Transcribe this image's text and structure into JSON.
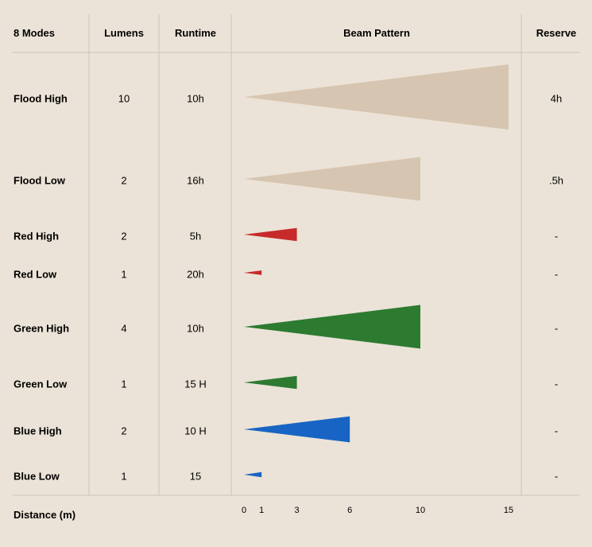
{
  "chart_data": {
    "type": "table",
    "columns": [
      "8 Modes",
      "Lumens",
      "Runtime",
      "Beam Pattern",
      "Reserve"
    ],
    "rows": [
      {
        "mode": "Flood High",
        "lumens": "10",
        "runtime": "10h",
        "reserve": "4h",
        "beam_distance": 15,
        "beam_spread": 1.0,
        "color": "#d6c5b0"
      },
      {
        "mode": "Flood Low",
        "lumens": "2",
        "runtime": "16h",
        "reserve": ".5h",
        "beam_distance": 10,
        "beam_spread": 0.67,
        "color": "#d6c5b0"
      },
      {
        "mode": "Red High",
        "lumens": "2",
        "runtime": "5h",
        "reserve": "-",
        "beam_distance": 3,
        "beam_spread": 0.2,
        "color": "#c62a2a"
      },
      {
        "mode": "Red Low",
        "lumens": "1",
        "runtime": "20h",
        "reserve": "-",
        "beam_distance": 1,
        "beam_spread": 0.07,
        "color": "#c62a2a"
      },
      {
        "mode": "Green High",
        "lumens": "4",
        "runtime": "10h",
        "reserve": "-",
        "beam_distance": 10,
        "beam_spread": 0.67,
        "color": "#2c7b31"
      },
      {
        "mode": "Green Low",
        "lumens": "1",
        "runtime": "15 H",
        "reserve": "-",
        "beam_distance": 3,
        "beam_spread": 0.2,
        "color": "#2c7b31"
      },
      {
        "mode": "Blue High",
        "lumens": "2",
        "runtime": "10 H",
        "reserve": "-",
        "beam_distance": 6,
        "beam_spread": 0.4,
        "color": "#1764c4"
      },
      {
        "mode": "Blue Low",
        "lumens": "1",
        "runtime": "15",
        "reserve": "-",
        "beam_distance": 1,
        "beam_spread": 0.08,
        "color": "#1764c4"
      }
    ],
    "x_axis": {
      "title": "Distance (m)",
      "ticks": [
        0,
        1,
        3,
        6,
        10,
        15
      ],
      "range": [
        0,
        15
      ]
    }
  }
}
